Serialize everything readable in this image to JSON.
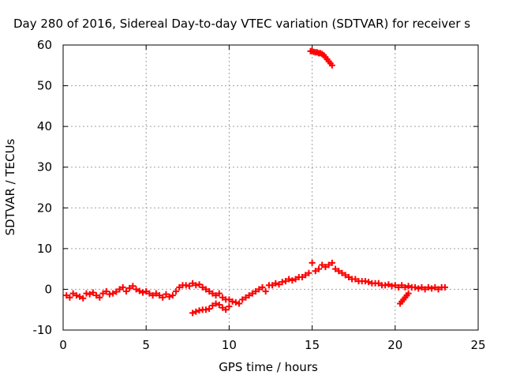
{
  "chart_data": {
    "type": "scatter",
    "title": "Day 280 of 2016, Sidereal Day-to-day VTEC variation (SDTVAR) for receiver s",
    "xlabel": "GPS time / hours",
    "ylabel": "SDTVAR / TECUs",
    "xlim": [
      0,
      25
    ],
    "ylim": [
      -10,
      60
    ],
    "xticks": [
      0,
      5,
      10,
      15,
      20,
      25
    ],
    "yticks": [
      -10,
      0,
      10,
      20,
      30,
      40,
      50,
      60
    ],
    "grid": true,
    "legend": "none",
    "marker": "+",
    "colors": {
      "series": "#ff0000",
      "grid": "#a0a0a0",
      "axes": "#000000"
    },
    "series": [
      {
        "x": [
          0.2,
          0.4,
          0.6,
          0.8,
          1.0,
          1.2,
          1.4,
          1.6,
          1.8,
          2.0,
          2.2,
          2.4,
          2.6,
          2.8,
          3.0,
          3.2,
          3.4,
          3.6,
          3.8,
          4.0,
          4.2,
          4.4,
          4.6,
          4.8,
          5.0,
          5.2,
          5.4,
          5.6,
          5.8,
          6.0,
          6.2,
          6.4,
          6.6,
          6.8,
          7.0,
          7.2,
          7.4,
          7.6,
          7.8,
          8.0,
          8.2,
          8.4,
          8.6,
          8.8,
          9.0,
          9.2,
          9.4,
          9.6,
          9.8,
          10.0,
          10.2,
          10.4,
          10.6,
          10.8,
          11.0,
          11.2,
          11.4,
          11.6,
          11.8,
          12.0,
          12.2,
          12.4,
          12.6,
          12.8,
          13.0,
          13.2,
          13.4,
          13.6,
          13.8,
          14.0,
          14.2,
          14.4,
          14.6,
          14.8,
          15.0,
          15.2,
          15.4,
          15.6,
          15.8,
          16.0,
          16.2,
          16.4,
          16.6,
          16.8,
          17.0,
          17.2,
          17.4,
          17.6,
          17.8,
          18.0,
          18.2,
          18.4,
          18.6,
          18.8,
          19.0,
          19.2,
          19.4,
          19.6,
          19.8,
          20.0,
          20.2,
          20.4,
          20.6,
          20.8,
          21.0,
          21.2,
          21.4,
          21.6,
          21.8,
          22.0,
          22.2,
          22.4,
          22.6,
          22.8,
          23.0
        ],
        "y": [
          -1.5,
          -2.0,
          -1.0,
          -1.5,
          -1.8,
          -2.2,
          -1.0,
          -1.2,
          -0.8,
          -1.5,
          -2.0,
          -1.0,
          -0.5,
          -1.2,
          -1.0,
          -0.6,
          0.0,
          0.5,
          -0.5,
          0.3,
          0.8,
          0.0,
          -0.4,
          -0.8,
          -0.5,
          -1.0,
          -1.5,
          -1.0,
          -1.5,
          -2.0,
          -1.2,
          -1.8,
          -1.5,
          -0.5,
          0.5,
          1.0,
          1.0,
          0.8,
          1.5,
          1.0,
          1.2,
          0.5,
          0.0,
          -0.5,
          -1.0,
          -1.5,
          -1.0,
          -2.0,
          -2.5,
          -2.5,
          -3.0,
          -3.2,
          -3.5,
          -2.5,
          -2.0,
          -1.5,
          -1.0,
          -0.5,
          0.0,
          0.5,
          -0.5,
          1.0,
          1.0,
          1.5,
          1.2,
          1.8,
          2.0,
          2.5,
          2.2,
          2.5,
          3.0,
          3.0,
          3.5,
          4.0,
          6.5,
          4.5,
          5.0,
          6.0,
          5.5,
          6.0,
          6.5,
          5.0,
          4.5,
          4.0,
          3.5,
          3.0,
          2.5,
          2.5,
          2.0,
          2.0,
          2.0,
          1.8,
          1.5,
          1.5,
          1.5,
          1.0,
          1.0,
          1.2,
          0.8,
          1.0,
          0.5,
          1.0,
          0.5,
          0.8,
          0.5,
          0.5,
          0.2,
          0.5,
          0.0,
          0.5,
          0.2,
          0.5,
          0.0,
          0.5,
          0.5
        ]
      },
      {
        "x": [
          7.8,
          8.0,
          8.2,
          8.4,
          8.6,
          8.8,
          9.0,
          9.2,
          9.4,
          9.6,
          9.8,
          10.0
        ],
        "y": [
          -5.8,
          -5.5,
          -5.2,
          -5.0,
          -5.0,
          -4.8,
          -4.0,
          -3.5,
          -3.8,
          -4.5,
          -5.0,
          -4.2
        ]
      },
      {
        "x": [
          20.3,
          20.4,
          20.5,
          20.6,
          20.7,
          20.8
        ],
        "y": [
          -3.5,
          -3.0,
          -2.5,
          -2.0,
          -1.5,
          -1.0
        ]
      },
      {
        "x": [
          14.9,
          15.0,
          15.1,
          15.2,
          15.3,
          15.4,
          15.5,
          15.6,
          15.7,
          15.8,
          15.9,
          16.0,
          16.1,
          16.2
        ],
        "y": [
          58.5,
          58.5,
          58.3,
          58.2,
          58.2,
          58.0,
          58.0,
          57.8,
          57.5,
          57.0,
          56.5,
          56.0,
          55.5,
          55.0
        ]
      }
    ]
  }
}
